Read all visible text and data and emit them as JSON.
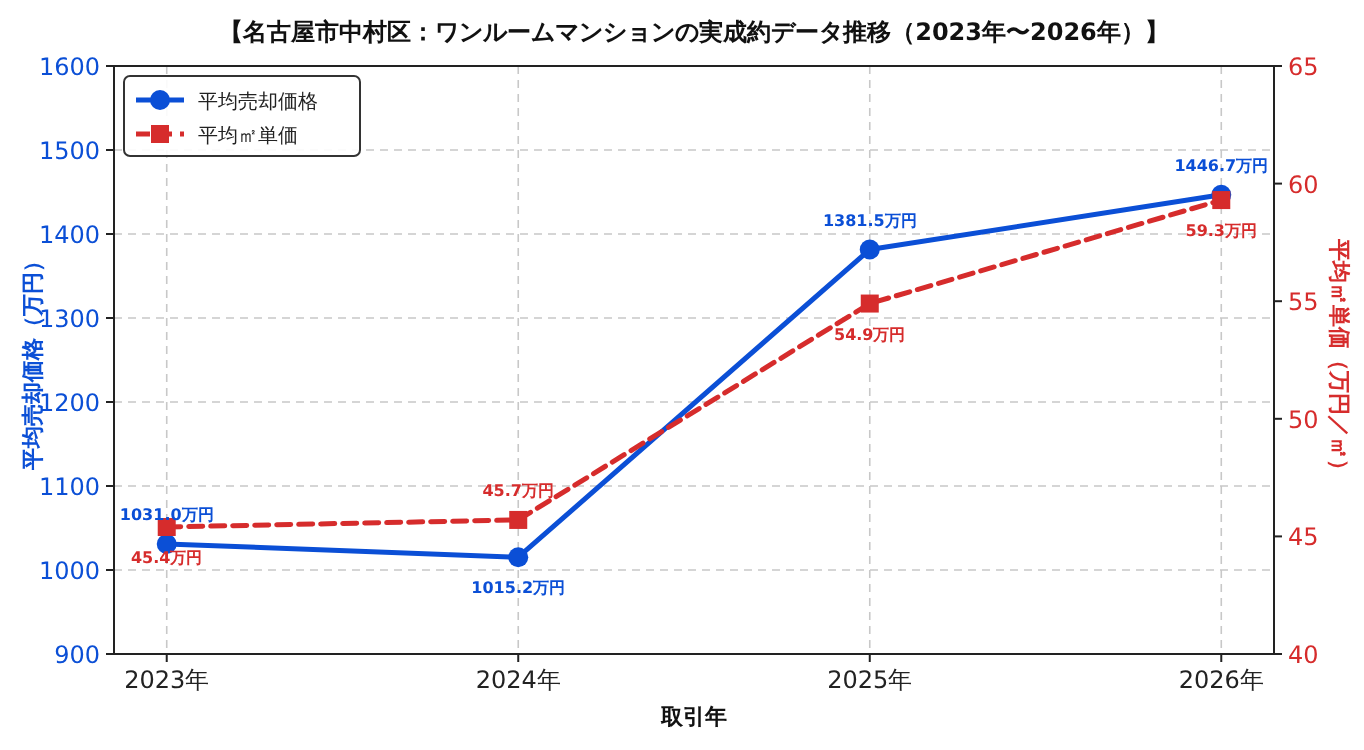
{
  "chart_data": {
    "type": "line",
    "title": "【名古屋市中村区：ワンルームマンションの実成約データ推移（2023年〜2026年）】",
    "xlabel": "取引年",
    "ylabel": "平均売却価格（万円）",
    "y2label": "平均㎡単価（万円／㎡）",
    "categories": [
      "2023年",
      "2024年",
      "2025年",
      "2026年"
    ],
    "series": [
      {
        "name": "平均売却価格",
        "color": "#0b4fd6",
        "values": [
          1031.0,
          1015.2,
          1381.5,
          1446.7
        ],
        "value_labels": [
          "1031.0万円",
          "1015.2万円",
          "1381.5万円",
          "1446.7万円"
        ],
        "marker": "circle",
        "line_style": "solid"
      },
      {
        "name": "平均㎡単価",
        "color": "#d62c2c",
        "values": [
          45.4,
          45.7,
          54.9,
          59.3
        ],
        "value_labels": [
          "45.4万円",
          "45.7万円",
          "54.9万円",
          "59.3万円"
        ],
        "marker": "square",
        "line_style": "dashed",
        "axis": "y2"
      }
    ],
    "ylim": [
      900,
      1600
    ],
    "yticks": [
      900,
      1000,
      1100,
      1200,
      1300,
      1400,
      1500,
      1600
    ],
    "y2lim": [
      40,
      65
    ],
    "y2ticks": [
      40,
      45,
      50,
      55,
      60,
      65
    ],
    "grid": true,
    "legend": "top left"
  }
}
